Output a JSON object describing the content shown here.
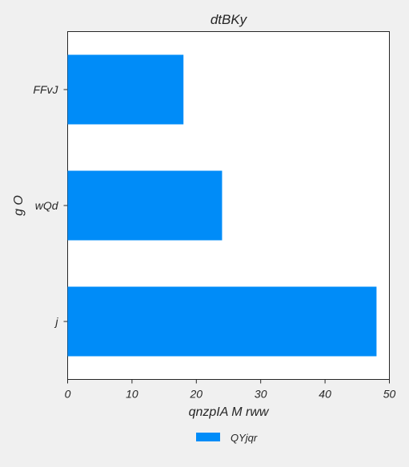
{
  "chart_data": {
    "type": "bar",
    "orientation": "horizontal",
    "title": "dtBKy",
    "xlabel": "qnzpIA  M rww",
    "ylabel": "g  O",
    "categories": [
      "FFvJ",
      "wQd",
      "j"
    ],
    "series": [
      {
        "name": "QYjqr",
        "values": [
          18,
          24,
          48
        ],
        "color": "#008cf8"
      }
    ],
    "xlim": [
      0,
      50
    ],
    "xticks": [
      0,
      10,
      20,
      30,
      40,
      50
    ],
    "grid": false,
    "legend_position": "bottom-center"
  }
}
